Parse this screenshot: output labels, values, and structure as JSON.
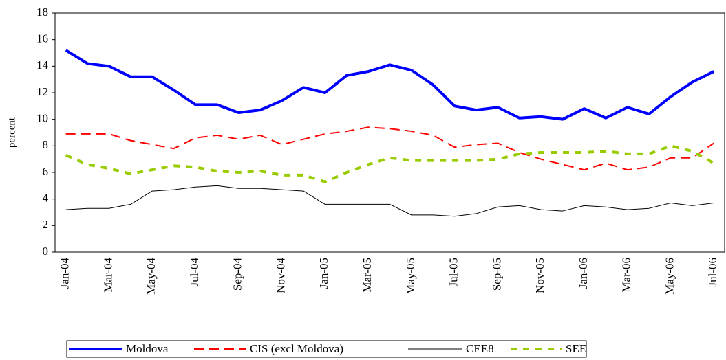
{
  "chart_data": {
    "type": "line",
    "y_label": "percent",
    "categories": [
      "Jan-04",
      null,
      "Mar-04",
      null,
      "May-04",
      null,
      "Jul-04",
      null,
      "Sep-04",
      null,
      "Nov-04",
      null,
      "Jan-05",
      null,
      "Mar-05",
      null,
      "May-05",
      null,
      "Jul-05",
      null,
      "Sep-05",
      null,
      "Nov-05",
      null,
      "Jan-06",
      null,
      "Mar-06",
      null,
      "May-06",
      null,
      "Jul-06"
    ],
    "series": [
      {
        "name": "Moldova",
        "color": "#0000ff",
        "values": [
          15.2,
          14.2,
          14.0,
          13.2,
          13.2,
          12.2,
          11.1,
          11.1,
          10.5,
          10.7,
          11.4,
          12.4,
          12.0,
          13.3,
          13.6,
          14.1,
          13.7,
          12.6,
          11.0,
          10.7,
          10.9,
          10.1,
          10.2,
          10.0,
          10.8,
          10.1,
          10.9,
          10.4,
          11.7,
          12.8,
          13.6
        ]
      },
      {
        "name": "CIS (excl Moldova)",
        "color": "#ff0000",
        "values": [
          8.9,
          8.9,
          8.9,
          8.4,
          8.1,
          7.8,
          8.6,
          8.8,
          8.5,
          8.8,
          8.1,
          8.5,
          8.9,
          9.1,
          9.4,
          9.3,
          9.1,
          8.8,
          7.9,
          8.1,
          8.2,
          7.5,
          7.0,
          6.6,
          6.2,
          6.7,
          6.2,
          6.4,
          7.1,
          7.1,
          8.2
        ]
      },
      {
        "name": "CEE8",
        "color": "#000000",
        "values": [
          3.2,
          3.3,
          3.3,
          3.6,
          4.6,
          4.7,
          4.9,
          5.0,
          4.8,
          4.8,
          4.7,
          4.6,
          3.6,
          3.6,
          3.6,
          3.6,
          2.8,
          2.8,
          2.7,
          2.9,
          3.4,
          3.5,
          3.2,
          3.1,
          3.5,
          3.4,
          3.2,
          3.3,
          3.7,
          3.5,
          3.7
        ]
      },
      {
        "name": "SEE",
        "color": "#99cc00",
        "values": [
          7.3,
          6.6,
          6.3,
          5.9,
          6.2,
          6.5,
          6.4,
          6.1,
          6.0,
          6.1,
          5.8,
          5.8,
          5.3,
          6.0,
          6.6,
          7.1,
          6.9,
          6.9,
          6.9,
          6.9,
          7.0,
          7.4,
          7.5,
          7.5,
          7.5,
          7.6,
          7.4,
          7.4,
          8.0,
          7.6,
          6.7
        ]
      }
    ],
    "ylim": [
      0,
      18
    ],
    "yticks": [
      0,
      2,
      4,
      6,
      8,
      10,
      12,
      14,
      16,
      18
    ],
    "grid": false,
    "legend": "bottom"
  }
}
